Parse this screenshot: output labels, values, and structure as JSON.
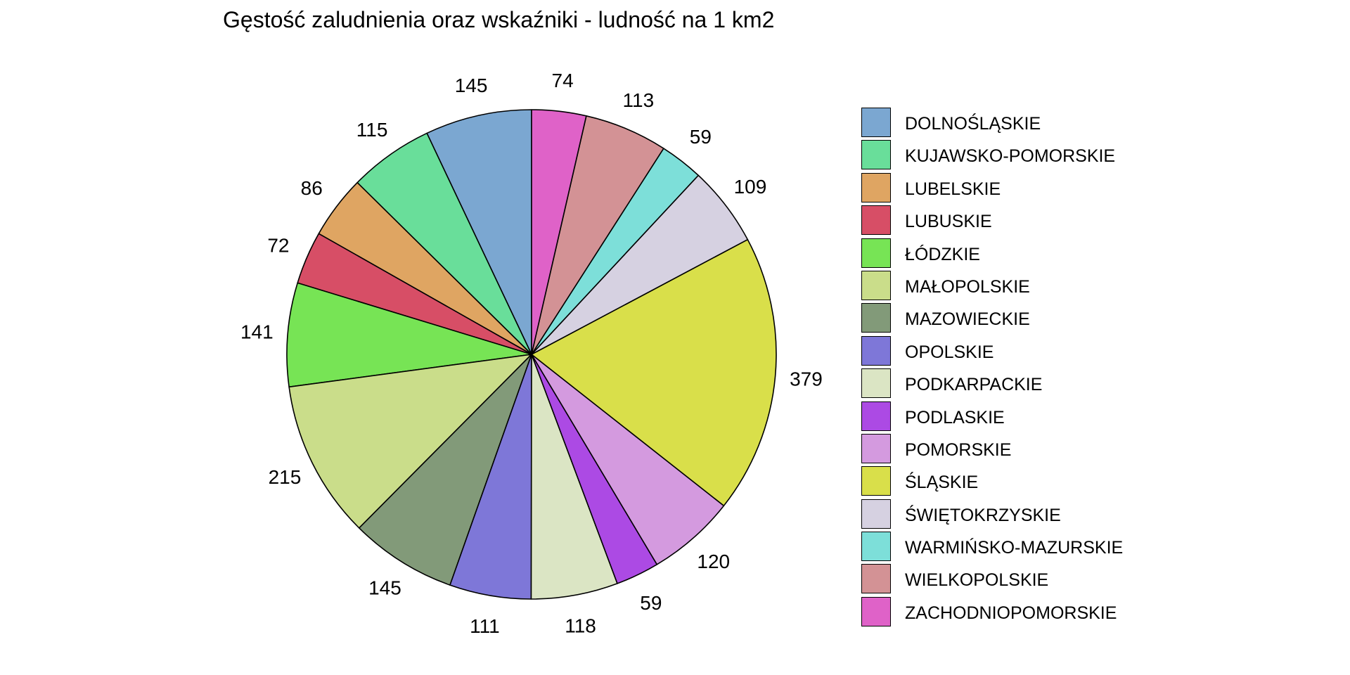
{
  "chart_data": {
    "type": "pie",
    "title": "Gęstość zaludnienia oraz wskaźniki - ludność na 1 km2",
    "start": "12 o'clock",
    "direction": "counterclockwise",
    "legend_position": "right",
    "slices": [
      {
        "label": "DOLNOŚLĄSKIE",
        "value": 145,
        "color": "#7BA7D1"
      },
      {
        "label": "KUJAWSKO-POMORSKIE",
        "value": 115,
        "color": "#69DE9A"
      },
      {
        "label": "LUBELSKIE",
        "value": 86,
        "color": "#DFA562"
      },
      {
        "label": "LUBUSKIE",
        "value": 72,
        "color": "#D74E66"
      },
      {
        "label": "ŁÓDZKIE",
        "value": 141,
        "color": "#77E455"
      },
      {
        "label": "MAŁOPOLSKIE",
        "value": 215,
        "color": "#CADD8A"
      },
      {
        "label": "MAZOWIECKIE",
        "value": 145,
        "color": "#829A79"
      },
      {
        "label": "OPOLSKIE",
        "value": 111,
        "color": "#7E77D8"
      },
      {
        "label": "PODKARPACKIE",
        "value": 118,
        "color": "#DBE5C4"
      },
      {
        "label": "PODLASKIE",
        "value": 59,
        "color": "#AC4AE4"
      },
      {
        "label": "POMORSKIE",
        "value": 120,
        "color": "#D49ADF"
      },
      {
        "label": "ŚLĄSKIE",
        "value": 379,
        "color": "#D9DF4A"
      },
      {
        "label": "ŚWIĘTOKRZYSKIE",
        "value": 109,
        "color": "#D6D1E1"
      },
      {
        "label": "WARMIŃSKO-MAZURSKIE",
        "value": 59,
        "color": "#7DDFD9"
      },
      {
        "label": "WIELKOPOLSKIE",
        "value": 113,
        "color": "#D39295"
      },
      {
        "label": "ZACHODNIOPOMORSKIE",
        "value": 74,
        "color": "#DF62C8"
      }
    ]
  }
}
